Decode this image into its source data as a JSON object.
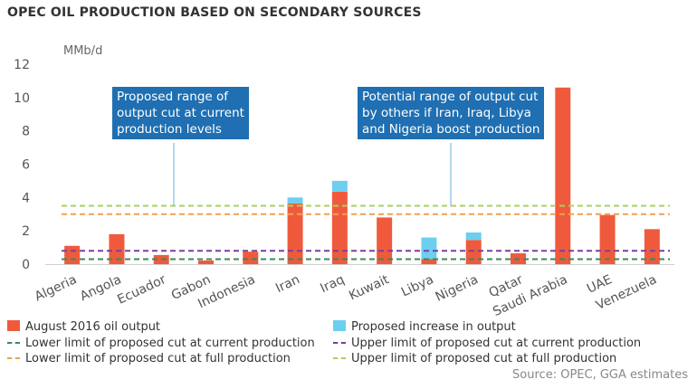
{
  "title": "OPEC OIL PRODUCTION BASED ON SECONDARY SOURCES",
  "source": "Source: OPEC, GGA estimates",
  "callouts": {
    "left": [
      "Proposed range of",
      "output cut at current",
      "production levels"
    ],
    "right": [
      "Potential range of output cut",
      "by others if Iran, Iraq, Libya",
      "and Nigeria boost production"
    ]
  },
  "colors": {
    "output": "#f05a3c",
    "increase": "#6ccfef",
    "lower_current": "#3a8a5a",
    "upper_current": "#7a3fa0",
    "lower_full": "#f0a050",
    "upper_full": "#a8d060",
    "callout": "#1f6fb2"
  },
  "legend": {
    "output": "August 2016 oil output",
    "increase": "Proposed increase in output",
    "lower_current": "Lower limit of proposed cut at current production",
    "upper_current": "Upper limit of proposed cut at current production",
    "lower_full": "Lower limit of proposed cut at full production",
    "upper_full": "Upper limit of proposed cut at full production"
  },
  "chart_data": {
    "type": "bar",
    "title": "OPEC OIL PRODUCTION BASED ON SECONDARY SOURCES",
    "ylabel": "MMb/d",
    "ylim": [
      0,
      12
    ],
    "yticks": [
      0,
      2,
      4,
      6,
      8,
      10,
      12
    ],
    "grid": false,
    "legend_position": "bottom",
    "categories": [
      "Algeria",
      "Angola",
      "Ecuador",
      "Gabon",
      "Indonesia",
      "Iran",
      "Iraq",
      "Kuwait",
      "Libya",
      "Nigeria",
      "Qatar",
      "Saudi Arabia",
      "UAE",
      "Venezuela"
    ],
    "series": [
      {
        "name": "August 2016 oil output",
        "values": [
          1.1,
          1.8,
          0.55,
          0.22,
          0.75,
          3.65,
          4.35,
          2.8,
          0.3,
          1.45,
          0.65,
          10.6,
          2.95,
          2.1
        ]
      },
      {
        "name": "Proposed increase in output",
        "values": [
          0,
          0,
          0,
          0,
          0,
          0.35,
          0.65,
          0,
          1.3,
          0.45,
          0,
          0,
          0,
          0
        ]
      }
    ],
    "reference_lines": [
      {
        "name": "Lower limit of proposed cut at current production",
        "value": 0.3
      },
      {
        "name": "Upper limit of proposed cut at current production",
        "value": 0.8
      },
      {
        "name": "Lower limit of proposed cut at full production",
        "value": 3.0
      },
      {
        "name": "Upper limit of proposed cut at full production",
        "value": 3.5
      }
    ]
  }
}
